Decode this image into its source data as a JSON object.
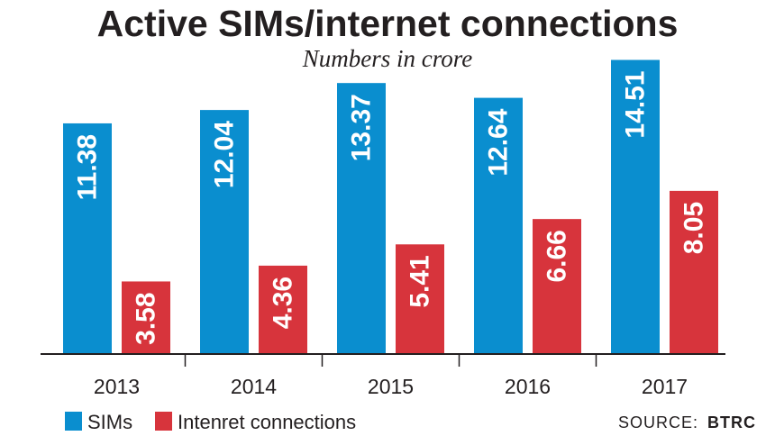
{
  "chart_data": {
    "type": "bar",
    "title": "Active SIMs/internet connections",
    "subtitle": "Numbers in crore",
    "categories": [
      "2013",
      "2014",
      "2015",
      "2016",
      "2017"
    ],
    "series": [
      {
        "name": "SIMs",
        "values": [
          11.38,
          12.04,
          13.37,
          12.64,
          14.51
        ],
        "color": "#0a8ecf"
      },
      {
        "name": "Intenret connections",
        "values": [
          3.58,
          4.36,
          5.41,
          6.66,
          8.05
        ],
        "color": "#d7343c"
      }
    ],
    "ylim": [
      0,
      15
    ],
    "grid": false,
    "legend": "bottom-left",
    "source": {
      "label": "SOURCE:",
      "name": "BTRC"
    }
  }
}
